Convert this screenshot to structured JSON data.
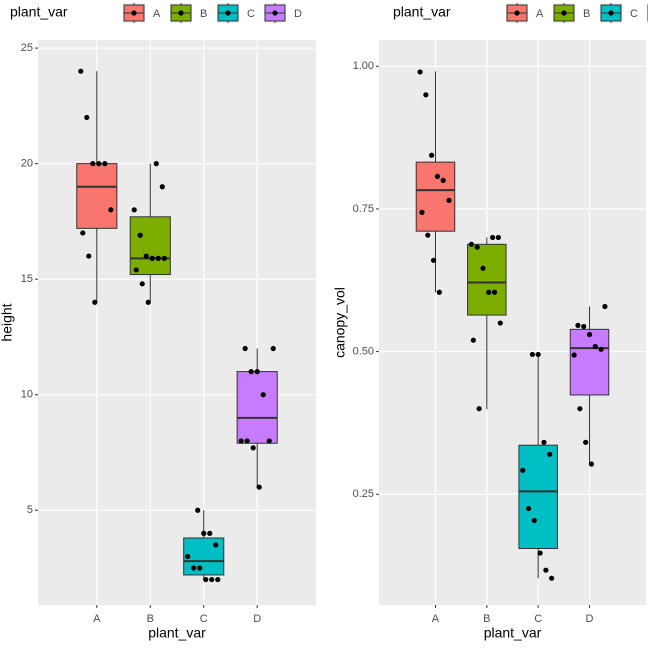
{
  "chart_data": [
    {
      "type": "boxplot",
      "x_label": "plant_var",
      "y_label": "height",
      "legend_title": "plant_var",
      "categories": [
        "A",
        "B",
        "C",
        "D"
      ],
      "colors": [
        "#F8766D",
        "#7CAE00",
        "#00BFC4",
        "#C77CFF"
      ],
      "ylim": [
        0.9,
        25.35
      ],
      "yticks": [
        5,
        10,
        15,
        20,
        25
      ],
      "grid": true,
      "boxes": [
        {
          "whisker_low": 14,
          "q1": 17.2,
          "median": 19,
          "q3": 20,
          "whisker_high": 24
        },
        {
          "whisker_low": 14,
          "q1": 15.2,
          "median": 15.9,
          "q3": 17.7,
          "whisker_high": 20
        },
        {
          "whisker_low": 2,
          "q1": 2.2,
          "median": 2.8,
          "q3": 3.8,
          "whisker_high": 5
        },
        {
          "whisker_low": 6,
          "q1": 7.9,
          "median": 9,
          "q3": 11,
          "whisker_high": 12
        }
      ],
      "points": [
        [
          24,
          22,
          20,
          20,
          20,
          18,
          17,
          16,
          14
        ],
        [
          20,
          19,
          18,
          16.9,
          16,
          15.9,
          15.9,
          15.9,
          15.4,
          14.8,
          14
        ],
        [
          5,
          4,
          4,
          3.5,
          3,
          2.5,
          2.5,
          2,
          2,
          2
        ],
        [
          12,
          12,
          11,
          11,
          10,
          8,
          8,
          8,
          7.7,
          6
        ]
      ]
    },
    {
      "type": "boxplot",
      "x_label": "plant_var",
      "y_label": "canopy_vol",
      "legend_title": "plant_var",
      "categories": [
        "A",
        "B",
        "C",
        "D"
      ],
      "colors": [
        "#F8766D",
        "#7CAE00",
        "#00BFC4",
        "#C77CFF"
      ],
      "ylim": [
        0.056,
        1.046
      ],
      "yticks": [
        {
          "value": 0.25,
          "label": "0.25"
        },
        {
          "value": 0.5,
          "label": "0.50"
        },
        {
          "value": 0.75,
          "label": "0.75"
        },
        {
          "value": 1,
          "label": "1.00"
        }
      ],
      "grid": true,
      "boxes": [
        {
          "whisker_low": 0.604,
          "q1": 0.711,
          "median": 0.783,
          "q3": 0.832,
          "whisker_high": 0.991
        },
        {
          "whisker_low": 0.399,
          "q1": 0.564,
          "median": 0.621,
          "q3": 0.688,
          "whisker_high": 0.7
        },
        {
          "whisker_low": 0.103,
          "q1": 0.155,
          "median": 0.255,
          "q3": 0.336,
          "whisker_high": 0.497
        },
        {
          "whisker_low": 0.303,
          "q1": 0.424,
          "median": 0.506,
          "q3": 0.539,
          "whisker_high": 0.579
        }
      ],
      "points": [
        [
          0.99,
          0.95,
          0.844,
          0.807,
          0.8,
          0.765,
          0.744,
          0.704,
          0.66,
          0.604
        ],
        [
          0.7,
          0.7,
          0.688,
          0.683,
          0.646,
          0.604,
          0.604,
          0.55,
          0.52,
          0.4
        ],
        [
          0.495,
          0.495,
          0.341,
          0.32,
          0.292,
          0.225,
          0.204,
          0.147,
          0.117,
          0.103
        ],
        [
          0.579,
          0.546,
          0.544,
          0.53,
          0.509,
          0.504,
          0.494,
          0.4,
          0.341,
          0.303
        ]
      ]
    }
  ]
}
